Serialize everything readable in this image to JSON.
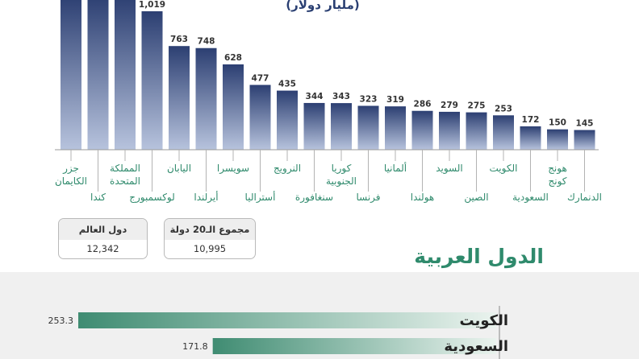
{
  "unit_label": "(مليار دولار)",
  "chart_data": [
    {
      "type": "bar",
      "unit": "(مليار دولار)",
      "categories": [
        [
          "جزر",
          "الكايمان"
        ],
        [
          "كندا"
        ],
        [
          "المملكة",
          "المتحدة"
        ],
        [
          "لوكسمبورج"
        ],
        [
          "اليابان"
        ],
        [
          "أيرلندا"
        ],
        [
          "سويسرا"
        ],
        [
          "أستراليا"
        ],
        [
          "النرويج"
        ],
        [
          "سنغافورة"
        ],
        [
          "كوريا",
          "الجنوبية"
        ],
        [
          "فرنسا"
        ],
        [
          "ألمانيا"
        ],
        [
          "هولندا"
        ],
        [
          "السويد"
        ],
        [
          "الصين"
        ],
        [
          "الكويت"
        ],
        [
          "السعودية"
        ],
        [
          "هونج",
          "كونج"
        ],
        [
          "الدنمارك"
        ]
      ],
      "values": [
        null,
        null,
        null,
        1019,
        763,
        748,
        628,
        477,
        435,
        344,
        343,
        323,
        319,
        286,
        279,
        275,
        253,
        172,
        150,
        145
      ],
      "value_labels": [
        "",
        "",
        "",
        "1,019",
        "763",
        "748",
        "628",
        "477",
        "435",
        "344",
        "343",
        "323",
        "319",
        "286",
        "279",
        "275",
        "253",
        "172",
        "150",
        "145"
      ],
      "bar_color_top": "#2c3f72",
      "bar_color_bottom": "#b7c3dd"
    },
    {
      "type": "bar",
      "orientation": "horizontal",
      "title": "الدول العربية",
      "categories": [
        "الكويت",
        "السعودية"
      ],
      "values": [
        253.3,
        171.8
      ],
      "value_labels": [
        "253.3",
        "171.8"
      ],
      "bar_color_left": "#3f8c72",
      "bar_color_right": "#eaf3ee"
    }
  ],
  "summary": [
    {
      "label": "دول العالم",
      "value": "12,342"
    },
    {
      "label": "مجموع الـ20 دولة",
      "value": "10,995"
    }
  ]
}
